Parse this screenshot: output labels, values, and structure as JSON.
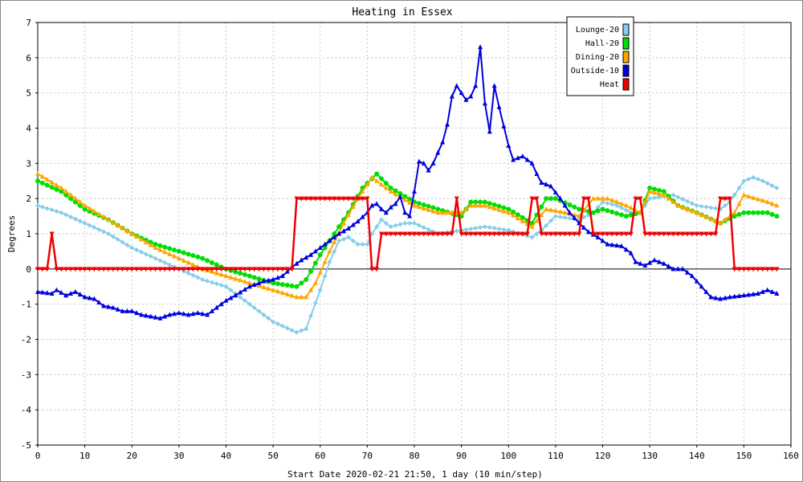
{
  "chart_data": {
    "type": "line",
    "title": "Heating in Essex",
    "xlabel": "Start Date 2020-02-21 21:50, 1 day (10 min/step)",
    "ylabel": "Degrees",
    "xlim": [
      0,
      160
    ],
    "ylim": [
      -5,
      7
    ],
    "xticks": [
      0,
      10,
      20,
      30,
      40,
      50,
      60,
      70,
      80,
      90,
      100,
      110,
      120,
      130,
      140,
      150,
      160
    ],
    "yticks": [
      -5,
      -4,
      -3,
      -2,
      -1,
      0,
      1,
      2,
      3,
      4,
      5,
      6,
      7
    ],
    "grid": true,
    "legend_position": "top-right",
    "series": [
      {
        "name": "Lounge-20",
        "color": "#87CEEB",
        "marker": "diamond",
        "points": [
          [
            0,
            1.8
          ],
          [
            5,
            1.6
          ],
          [
            10,
            1.3
          ],
          [
            15,
            1.0
          ],
          [
            20,
            0.6
          ],
          [
            25,
            0.3
          ],
          [
            30,
            0.0
          ],
          [
            35,
            -0.3
          ],
          [
            40,
            -0.5
          ],
          [
            45,
            -1.0
          ],
          [
            50,
            -1.5
          ],
          [
            55,
            -1.8
          ],
          [
            57,
            -1.7
          ],
          [
            60,
            -0.6
          ],
          [
            62,
            0.2
          ],
          [
            64,
            0.8
          ],
          [
            66,
            0.9
          ],
          [
            68,
            0.7
          ],
          [
            70,
            0.7
          ],
          [
            71,
            1.0
          ],
          [
            73,
            1.4
          ],
          [
            75,
            1.2
          ],
          [
            78,
            1.3
          ],
          [
            80,
            1.3
          ],
          [
            85,
            1.0
          ],
          [
            90,
            1.1
          ],
          [
            95,
            1.2
          ],
          [
            100,
            1.1
          ],
          [
            105,
            0.9
          ],
          [
            107,
            1.1
          ],
          [
            110,
            1.5
          ],
          [
            115,
            1.4
          ],
          [
            118,
            1.6
          ],
          [
            120,
            1.9
          ],
          [
            123,
            1.8
          ],
          [
            126,
            1.6
          ],
          [
            128,
            1.6
          ],
          [
            130,
            2.0
          ],
          [
            135,
            2.1
          ],
          [
            140,
            1.8
          ],
          [
            145,
            1.7
          ],
          [
            147,
            1.9
          ],
          [
            150,
            2.5
          ],
          [
            152,
            2.6
          ],
          [
            154,
            2.5
          ],
          [
            157,
            2.3
          ]
        ]
      },
      {
        "name": "Hall-20",
        "color": "#00DD00",
        "marker": "circle",
        "points": [
          [
            0,
            2.5
          ],
          [
            5,
            2.2
          ],
          [
            10,
            1.7
          ],
          [
            15,
            1.4
          ],
          [
            20,
            1.0
          ],
          [
            25,
            0.7
          ],
          [
            30,
            0.5
          ],
          [
            35,
            0.3
          ],
          [
            40,
            0.0
          ],
          [
            45,
            -0.2
          ],
          [
            50,
            -0.4
          ],
          [
            55,
            -0.5
          ],
          [
            57,
            -0.3
          ],
          [
            60,
            0.4
          ],
          [
            63,
            1.0
          ],
          [
            66,
            1.6
          ],
          [
            69,
            2.3
          ],
          [
            72,
            2.7
          ],
          [
            75,
            2.3
          ],
          [
            80,
            1.9
          ],
          [
            85,
            1.7
          ],
          [
            90,
            1.5
          ],
          [
            92,
            1.9
          ],
          [
            95,
            1.9
          ],
          [
            100,
            1.7
          ],
          [
            105,
            1.3
          ],
          [
            108,
            2.0
          ],
          [
            110,
            2.0
          ],
          [
            115,
            1.7
          ],
          [
            118,
            1.6
          ],
          [
            120,
            1.7
          ],
          [
            125,
            1.5
          ],
          [
            128,
            1.6
          ],
          [
            130,
            2.3
          ],
          [
            133,
            2.2
          ],
          [
            136,
            1.8
          ],
          [
            140,
            1.6
          ],
          [
            145,
            1.3
          ],
          [
            148,
            1.5
          ],
          [
            150,
            1.6
          ],
          [
            155,
            1.6
          ],
          [
            157,
            1.5
          ]
        ]
      },
      {
        "name": "Dining-20",
        "color": "#FFA500",
        "marker": "triangle",
        "points": [
          [
            0,
            2.7
          ],
          [
            5,
            2.3
          ],
          [
            10,
            1.8
          ],
          [
            15,
            1.4
          ],
          [
            20,
            1.0
          ],
          [
            25,
            0.6
          ],
          [
            30,
            0.3
          ],
          [
            35,
            0.0
          ],
          [
            40,
            -0.2
          ],
          [
            45,
            -0.4
          ],
          [
            50,
            -0.6
          ],
          [
            55,
            -0.8
          ],
          [
            57,
            -0.8
          ],
          [
            59,
            -0.4
          ],
          [
            62,
            0.5
          ],
          [
            65,
            1.3
          ],
          [
            68,
            2.0
          ],
          [
            71,
            2.6
          ],
          [
            75,
            2.2
          ],
          [
            80,
            1.8
          ],
          [
            85,
            1.6
          ],
          [
            88,
            1.6
          ],
          [
            90,
            1.6
          ],
          [
            92,
            1.8
          ],
          [
            95,
            1.8
          ],
          [
            100,
            1.6
          ],
          [
            105,
            1.2
          ],
          [
            108,
            1.7
          ],
          [
            112,
            1.6
          ],
          [
            115,
            1.5
          ],
          [
            118,
            2.0
          ],
          [
            121,
            2.0
          ],
          [
            125,
            1.8
          ],
          [
            128,
            1.6
          ],
          [
            130,
            2.2
          ],
          [
            133,
            2.1
          ],
          [
            136,
            1.8
          ],
          [
            140,
            1.6
          ],
          [
            145,
            1.3
          ],
          [
            148,
            1.6
          ],
          [
            150,
            2.1
          ],
          [
            155,
            1.9
          ],
          [
            157,
            1.8
          ]
        ]
      },
      {
        "name": "Outside-10",
        "color": "#0000DD",
        "marker": "triangle",
        "points": [
          [
            0,
            -0.65
          ],
          [
            3,
            -0.7
          ],
          [
            4,
            -0.6
          ],
          [
            6,
            -0.75
          ],
          [
            8,
            -0.65
          ],
          [
            10,
            -0.8
          ],
          [
            12,
            -0.85
          ],
          [
            14,
            -1.05
          ],
          [
            16,
            -1.1
          ],
          [
            18,
            -1.2
          ],
          [
            20,
            -1.2
          ],
          [
            22,
            -1.3
          ],
          [
            24,
            -1.35
          ],
          [
            26,
            -1.4
          ],
          [
            28,
            -1.3
          ],
          [
            30,
            -1.25
          ],
          [
            32,
            -1.3
          ],
          [
            34,
            -1.25
          ],
          [
            36,
            -1.3
          ],
          [
            38,
            -1.1
          ],
          [
            40,
            -0.9
          ],
          [
            42,
            -0.75
          ],
          [
            45,
            -0.5
          ],
          [
            48,
            -0.35
          ],
          [
            50,
            -0.3
          ],
          [
            52,
            -0.2
          ],
          [
            54,
            0.05
          ],
          [
            56,
            0.25
          ],
          [
            58,
            0.4
          ],
          [
            60,
            0.6
          ],
          [
            62,
            0.8
          ],
          [
            64,
            1.0
          ],
          [
            66,
            1.15
          ],
          [
            68,
            1.35
          ],
          [
            70,
            1.6
          ],
          [
            71,
            1.8
          ],
          [
            72,
            1.85
          ],
          [
            73,
            1.7
          ],
          [
            74,
            1.6
          ],
          [
            75,
            1.75
          ],
          [
            76,
            1.85
          ],
          [
            77,
            2.05
          ],
          [
            78,
            1.6
          ],
          [
            79,
            1.5
          ],
          [
            80,
            2.2
          ],
          [
            81,
            3.05
          ],
          [
            82,
            3.0
          ],
          [
            83,
            2.8
          ],
          [
            84,
            3.0
          ],
          [
            85,
            3.3
          ],
          [
            86,
            3.6
          ],
          [
            87,
            4.1
          ],
          [
            88,
            4.9
          ],
          [
            89,
            5.2
          ],
          [
            90,
            5.0
          ],
          [
            91,
            4.8
          ],
          [
            92,
            4.9
          ],
          [
            93,
            5.2
          ],
          [
            94,
            6.3
          ],
          [
            95,
            4.7
          ],
          [
            96,
            3.9
          ],
          [
            97,
            5.2
          ],
          [
            98,
            4.6
          ],
          [
            100,
            3.5
          ],
          [
            101,
            3.1
          ],
          [
            103,
            3.2
          ],
          [
            105,
            3.0
          ],
          [
            106,
            2.7
          ],
          [
            107,
            2.45
          ],
          [
            109,
            2.35
          ],
          [
            111,
            2.0
          ],
          [
            113,
            1.6
          ],
          [
            115,
            1.3
          ],
          [
            117,
            1.05
          ],
          [
            119,
            0.9
          ],
          [
            121,
            0.7
          ],
          [
            124,
            0.65
          ],
          [
            126,
            0.45
          ],
          [
            127,
            0.2
          ],
          [
            129,
            0.1
          ],
          [
            131,
            0.25
          ],
          [
            133,
            0.15
          ],
          [
            135,
            0.0
          ],
          [
            137,
            0.0
          ],
          [
            139,
            -0.2
          ],
          [
            141,
            -0.5
          ],
          [
            143,
            -0.8
          ],
          [
            145,
            -0.85
          ],
          [
            147,
            -0.8
          ],
          [
            150,
            -0.75
          ],
          [
            153,
            -0.7
          ],
          [
            155,
            -0.6
          ],
          [
            157,
            -0.7
          ]
        ]
      },
      {
        "name": "Heat",
        "color": "#EE0000",
        "marker": "triangle-down",
        "points": [
          [
            0,
            0
          ],
          [
            2,
            0
          ],
          [
            3,
            1
          ],
          [
            4,
            0
          ],
          [
            54,
            0
          ],
          [
            55,
            2
          ],
          [
            70,
            2
          ],
          [
            71,
            0
          ],
          [
            72,
            0
          ],
          [
            73,
            1
          ],
          [
            88,
            1
          ],
          [
            89,
            2
          ],
          [
            90,
            1
          ],
          [
            104,
            1
          ],
          [
            105,
            2
          ],
          [
            106,
            2
          ],
          [
            107,
            1
          ],
          [
            115,
            1
          ],
          [
            116,
            2
          ],
          [
            117,
            2
          ],
          [
            118,
            1
          ],
          [
            126,
            1
          ],
          [
            127,
            2
          ],
          [
            128,
            2
          ],
          [
            129,
            1
          ],
          [
            144,
            1
          ],
          [
            145,
            2
          ],
          [
            147,
            2
          ],
          [
            148,
            0
          ],
          [
            157,
            0
          ]
        ]
      }
    ]
  }
}
